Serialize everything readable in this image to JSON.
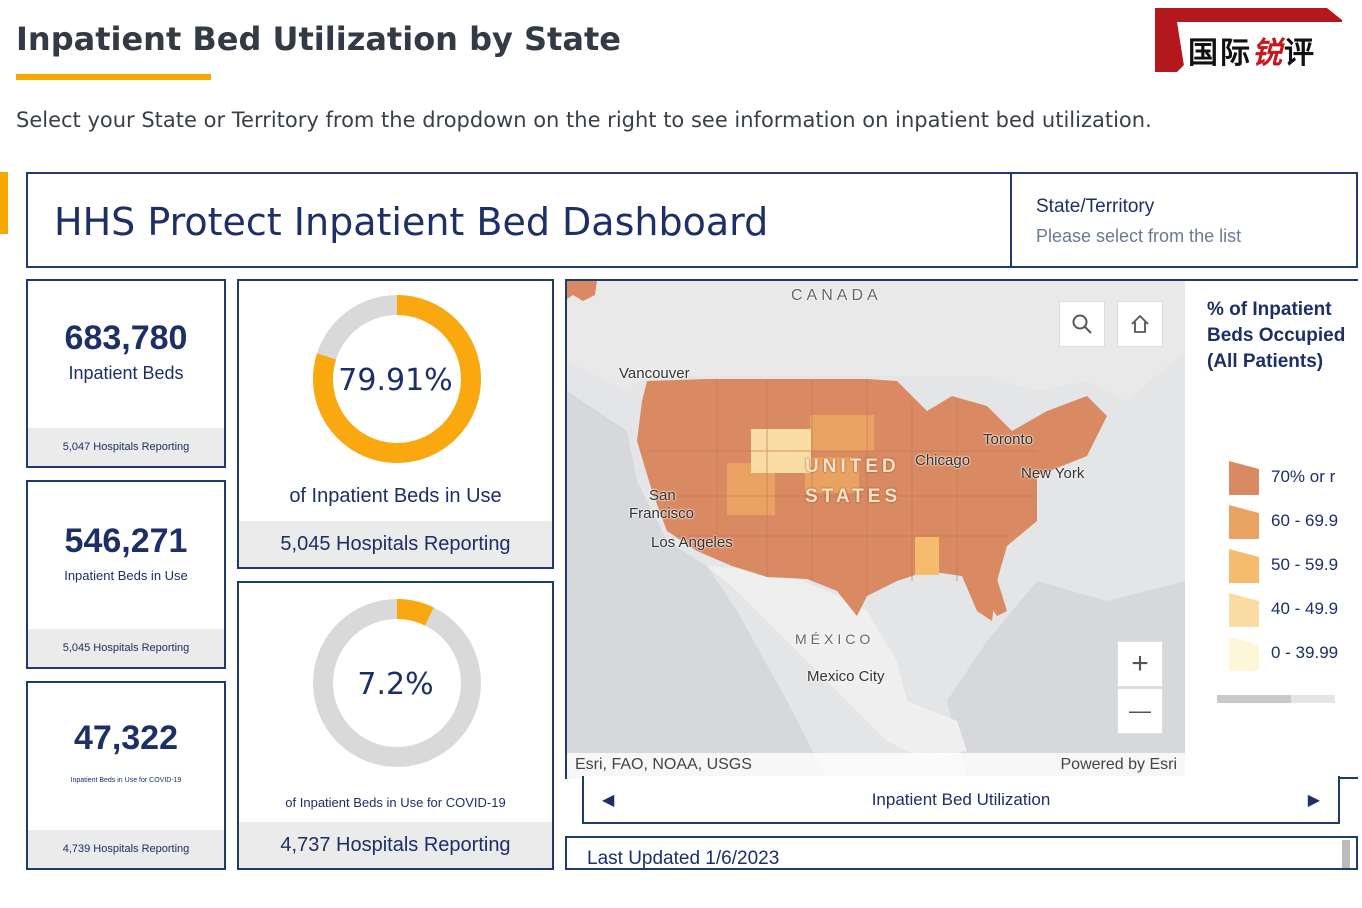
{
  "page": {
    "title": "Inpatient Bed Utilization by State",
    "subtitle": "Select your State or Territory from the dropdown on the right to see information on inpatient bed utilization."
  },
  "logo": {
    "text_black_1": "国际",
    "text_red": "锐",
    "text_black_2": "评"
  },
  "dashboard": {
    "title": "HHS Protect Inpatient Bed Dashboard",
    "state_label": "State/Territory",
    "state_placeholder": "Please select from the list"
  },
  "stats": [
    {
      "value": "683,780",
      "label": "Inpatient Beds",
      "footer": "5,047 Hospitals Reporting"
    },
    {
      "value": "546,271",
      "label": "Inpatient Beds in Use",
      "footer": "5,045 Hospitals Reporting"
    },
    {
      "value": "47,322",
      "label": "Inpatient Beds in Use for COVID-19",
      "footer": "4,739 Hospitals Reporting"
    }
  ],
  "donuts": [
    {
      "percent_text": "79.91%",
      "fraction": 0.7991,
      "label": "of Inpatient Beds in Use",
      "footer": "5,045 Hospitals Reporting",
      "fill_color": "#f9a90f",
      "track_color": "#d9d9d9"
    },
    {
      "percent_text": "7.2%",
      "fraction": 0.072,
      "label": "of Inpatient Beds in Use for COVID-19",
      "footer": "4,737 Hospitals Reporting",
      "fill_color": "#f9a90f",
      "track_color": "#d9d9d9"
    }
  ],
  "map": {
    "labels": {
      "canada": "CANADA",
      "vancouver": "Vancouver",
      "toronto": "Toronto",
      "chicago": "Chicago",
      "new_york": "New York",
      "san_francisco_1": "San",
      "san_francisco_2": "Francisco",
      "los_angeles": "Los Angeles",
      "united": "UNITED",
      "states": "STATES",
      "mexico": "MÉXICO",
      "mexico_city": "Mexico City"
    },
    "attribution_left": "Esri, FAO, NOAA, USGS",
    "attribution_right": "Powered by Esri",
    "search_icon": "search-icon",
    "home_icon": "home-icon",
    "zoom_in_label": "+",
    "zoom_out_label": "—"
  },
  "legend": {
    "title": "% of Inpatient Beds Occupied (All Patients)",
    "items": [
      {
        "label": "70% or r",
        "color": "#d98a62"
      },
      {
        "label": "60 - 69.9",
        "color": "#eaa263"
      },
      {
        "label": "50 - 59.9",
        "color": "#f6bc6e"
      },
      {
        "label": "40 - 49.9",
        "color": "#fbdca3"
      },
      {
        "label": "0 - 39.99",
        "color": "#fdf6d8"
      }
    ]
  },
  "tabs": {
    "current": "Inpatient Bed Utilization",
    "prev_icon": "◀",
    "next_icon": "▶"
  },
  "footer": {
    "last_updated": "Last Updated 1/6/2023"
  },
  "colors": {
    "accent": "#f5a800",
    "navy": "#1c2f66",
    "map_fill": "#d98a62"
  }
}
